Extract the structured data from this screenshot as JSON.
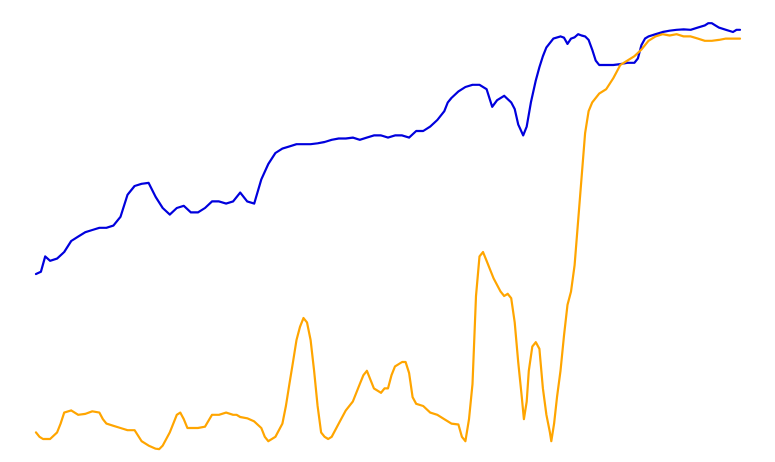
{
  "chart_data": {
    "type": "line",
    "title": "",
    "xlabel": "",
    "ylabel": "",
    "grid": false,
    "legend": "none",
    "xlim": [
      0,
      100
    ],
    "ylim": [
      0,
      100
    ],
    "series": [
      {
        "color": "#0000dd",
        "points": [
          [
            0,
            40
          ],
          [
            0.7,
            40.5
          ],
          [
            1.3,
            44
          ],
          [
            2,
            43
          ],
          [
            3,
            43.5
          ],
          [
            4,
            45
          ],
          [
            5,
            47.5
          ],
          [
            6,
            48.5
          ],
          [
            7,
            49.5
          ],
          [
            8,
            50
          ],
          [
            9,
            50.5
          ],
          [
            10,
            50.5
          ],
          [
            11,
            51
          ],
          [
            12,
            53
          ],
          [
            13,
            58
          ],
          [
            14,
            60
          ],
          [
            15,
            60.5
          ],
          [
            16,
            60.7
          ],
          [
            17,
            57.5
          ],
          [
            18,
            55
          ],
          [
            19,
            53.5
          ],
          [
            20,
            55
          ],
          [
            21,
            55.5
          ],
          [
            22,
            54
          ],
          [
            23,
            54
          ],
          [
            24,
            55
          ],
          [
            25,
            56.5
          ],
          [
            26,
            56.5
          ],
          [
            27,
            56
          ],
          [
            28,
            56.5
          ],
          [
            29,
            58.5
          ],
          [
            30,
            56.5
          ],
          [
            31,
            56
          ],
          [
            32,
            61.5
          ],
          [
            33,
            65
          ],
          [
            34,
            67.5
          ],
          [
            35,
            68.5
          ],
          [
            36,
            69
          ],
          [
            37,
            69.5
          ],
          [
            38,
            69.5
          ],
          [
            39,
            69.5
          ],
          [
            40,
            69.7
          ],
          [
            41,
            70
          ],
          [
            42,
            70.5
          ],
          [
            43,
            70.8
          ],
          [
            44,
            70.8
          ],
          [
            45,
            71
          ],
          [
            46,
            70.5
          ],
          [
            47,
            71
          ],
          [
            48,
            71.5
          ],
          [
            49,
            71.5
          ],
          [
            50,
            71
          ],
          [
            51,
            71.5
          ],
          [
            52,
            71.5
          ],
          [
            53,
            71
          ],
          [
            54,
            72.5
          ],
          [
            55,
            72.5
          ],
          [
            56,
            73.5
          ],
          [
            57,
            75
          ],
          [
            58,
            77
          ],
          [
            58.5,
            79
          ],
          [
            59,
            80
          ],
          [
            60,
            81.5
          ],
          [
            61,
            82.5
          ],
          [
            62,
            83
          ],
          [
            63,
            83
          ],
          [
            64,
            82
          ],
          [
            64.8,
            78
          ],
          [
            65.5,
            79.5
          ],
          [
            66.5,
            80.5
          ],
          [
            67.5,
            79
          ],
          [
            68,
            77.5
          ],
          [
            68.5,
            74
          ],
          [
            69.2,
            71.5
          ],
          [
            69.7,
            73.5
          ],
          [
            70.3,
            79
          ],
          [
            71,
            84
          ],
          [
            71.5,
            87
          ],
          [
            72,
            89.5
          ],
          [
            72.5,
            91.5
          ],
          [
            73.5,
            93.5
          ],
          [
            74.5,
            94
          ],
          [
            75,
            93.7
          ],
          [
            75.5,
            92.3
          ],
          [
            76,
            93.5
          ],
          [
            76.5,
            93.8
          ],
          [
            77,
            94.5
          ],
          [
            77.5,
            94.2
          ],
          [
            78,
            94
          ],
          [
            78.5,
            93.2
          ],
          [
            79,
            91
          ],
          [
            79.5,
            88.5
          ],
          [
            80,
            87.5
          ],
          [
            81,
            87.5
          ],
          [
            82,
            87.5
          ],
          [
            83,
            87.7
          ],
          [
            84,
            88
          ],
          [
            85,
            88
          ],
          [
            85.5,
            89
          ],
          [
            86,
            92
          ],
          [
            86.5,
            93.5
          ],
          [
            87,
            94
          ],
          [
            88,
            94.5
          ],
          [
            89,
            95
          ],
          [
            90,
            95.3
          ],
          [
            91,
            95.5
          ],
          [
            92,
            95.6
          ],
          [
            93,
            95.5
          ],
          [
            94,
            96
          ],
          [
            95,
            96.5
          ],
          [
            95.5,
            97
          ],
          [
            96,
            97
          ],
          [
            96.5,
            96.5
          ],
          [
            97,
            96
          ],
          [
            98,
            95.5
          ],
          [
            99,
            95
          ],
          [
            99.5,
            95.5
          ],
          [
            100,
            95.5
          ]
        ]
      },
      {
        "color": "#ffa500",
        "points": [
          [
            0,
            4
          ],
          [
            0.5,
            3
          ],
          [
            1,
            2.5
          ],
          [
            2,
            2.5
          ],
          [
            3,
            4
          ],
          [
            3.5,
            6
          ],
          [
            4,
            8.5
          ],
          [
            5,
            9
          ],
          [
            6,
            8
          ],
          [
            7,
            8.2
          ],
          [
            8,
            8.8
          ],
          [
            9,
            8.5
          ],
          [
            9.5,
            7
          ],
          [
            10,
            6
          ],
          [
            11,
            5.5
          ],
          [
            12,
            5
          ],
          [
            13,
            4.5
          ],
          [
            14,
            4.5
          ],
          [
            15,
            2
          ],
          [
            16,
            1
          ],
          [
            17,
            0.3
          ],
          [
            17.5,
            0.2
          ],
          [
            18,
            1
          ],
          [
            19,
            4
          ],
          [
            20,
            8
          ],
          [
            20.5,
            8.5
          ],
          [
            21,
            7
          ],
          [
            21.5,
            5
          ],
          [
            22,
            5
          ],
          [
            23,
            5
          ],
          [
            24,
            5.3
          ],
          [
            25,
            8
          ],
          [
            26,
            8
          ],
          [
            27,
            8.5
          ],
          [
            28,
            8
          ],
          [
            28.5,
            8
          ],
          [
            29,
            7.5
          ],
          [
            30,
            7.2
          ],
          [
            31,
            6.5
          ],
          [
            32,
            5
          ],
          [
            32.5,
            3
          ],
          [
            33,
            2
          ],
          [
            34,
            3
          ],
          [
            35,
            6
          ],
          [
            35.5,
            10
          ],
          [
            36,
            15
          ],
          [
            36.5,
            20
          ],
          [
            37,
            25
          ],
          [
            37.5,
            28
          ],
          [
            38,
            30
          ],
          [
            38.5,
            29
          ],
          [
            39,
            25
          ],
          [
            39.5,
            18
          ],
          [
            40,
            10
          ],
          [
            40.5,
            4
          ],
          [
            41,
            3
          ],
          [
            41.5,
            2.5
          ],
          [
            42,
            3
          ],
          [
            43,
            6
          ],
          [
            44,
            9
          ],
          [
            45,
            11
          ],
          [
            46,
            15
          ],
          [
            46.5,
            17
          ],
          [
            47,
            18
          ],
          [
            47.5,
            16
          ],
          [
            48,
            14
          ],
          [
            48.5,
            13.5
          ],
          [
            49,
            13
          ],
          [
            49.5,
            14
          ],
          [
            50,
            14
          ],
          [
            50.5,
            17
          ],
          [
            51,
            19
          ],
          [
            52,
            20
          ],
          [
            52.5,
            20
          ],
          [
            53,
            17.5
          ],
          [
            53.5,
            12
          ],
          [
            54,
            10.5
          ],
          [
            55,
            10
          ],
          [
            56,
            8.5
          ],
          [
            57,
            8
          ],
          [
            58,
            7
          ],
          [
            59,
            6
          ],
          [
            60,
            5.8
          ],
          [
            60.5,
            3
          ],
          [
            61,
            2
          ],
          [
            61.5,
            7
          ],
          [
            62,
            15
          ],
          [
            62.5,
            35
          ],
          [
            63,
            44
          ],
          [
            63.5,
            45
          ],
          [
            64,
            43
          ],
          [
            64.5,
            41
          ],
          [
            65,
            39
          ],
          [
            66,
            36
          ],
          [
            66.5,
            35
          ],
          [
            67,
            35.5
          ],
          [
            67.5,
            34.5
          ],
          [
            68,
            29
          ],
          [
            68.5,
            20
          ],
          [
            69,
            12
          ],
          [
            69.3,
            7
          ],
          [
            69.7,
            11
          ],
          [
            70,
            18
          ],
          [
            70.5,
            23.5
          ],
          [
            71,
            24.5
          ],
          [
            71.5,
            23
          ],
          [
            72,
            14
          ],
          [
            72.5,
            8
          ],
          [
            73,
            4
          ],
          [
            73.2,
            2
          ],
          [
            73.6,
            6
          ],
          [
            74,
            12
          ],
          [
            74.5,
            18
          ],
          [
            75,
            26
          ],
          [
            75.5,
            33
          ],
          [
            76,
            36
          ],
          [
            76.5,
            42
          ],
          [
            77,
            52
          ],
          [
            77.5,
            62
          ],
          [
            78,
            72
          ],
          [
            78.5,
            77
          ],
          [
            79,
            79
          ],
          [
            80,
            81
          ],
          [
            81,
            82
          ],
          [
            82,
            84.5
          ],
          [
            82.5,
            86
          ],
          [
            83,
            87.5
          ],
          [
            83.5,
            88
          ],
          [
            84,
            88.5
          ],
          [
            85,
            89.5
          ],
          [
            86,
            91
          ],
          [
            87,
            93
          ],
          [
            88,
            94
          ],
          [
            89,
            94.5
          ],
          [
            90,
            94.2
          ],
          [
            91,
            94.5
          ],
          [
            92,
            94
          ],
          [
            93,
            94
          ],
          [
            94,
            93.5
          ],
          [
            95,
            93
          ],
          [
            96,
            93
          ],
          [
            97,
            93.2
          ],
          [
            98,
            93.5
          ],
          [
            99,
            93.5
          ],
          [
            100,
            93.5
          ]
        ]
      }
    ]
  }
}
